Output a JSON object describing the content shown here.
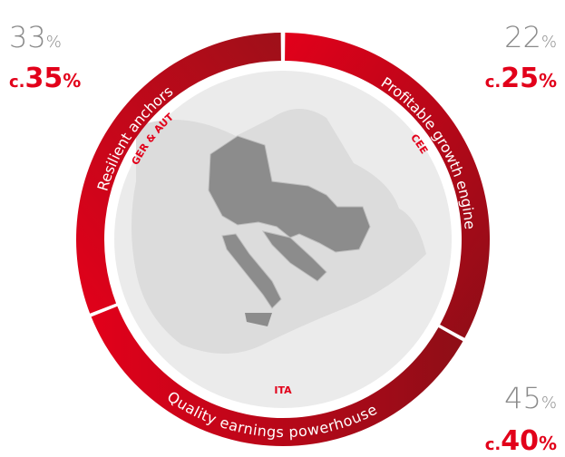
{
  "segments": [
    {
      "name": "Resilient anchors",
      "region": "GER & AUT",
      "current": {
        "value": "33",
        "unit": "%"
      },
      "target": {
        "prefix": "c.",
        "value": "35",
        "unit": "%"
      }
    },
    {
      "name": "Profitable growth engine",
      "region": "CEE",
      "current": {
        "value": "22",
        "unit": "%"
      },
      "target": {
        "prefix": "c.",
        "value": "25",
        "unit": "%"
      }
    },
    {
      "name": "Quality earnings powerhouse",
      "region": "ITA",
      "current": {
        "value": "45",
        "unit": "%"
      },
      "target": {
        "prefix": "c.",
        "value": "40",
        "unit": "%"
      }
    }
  ]
}
